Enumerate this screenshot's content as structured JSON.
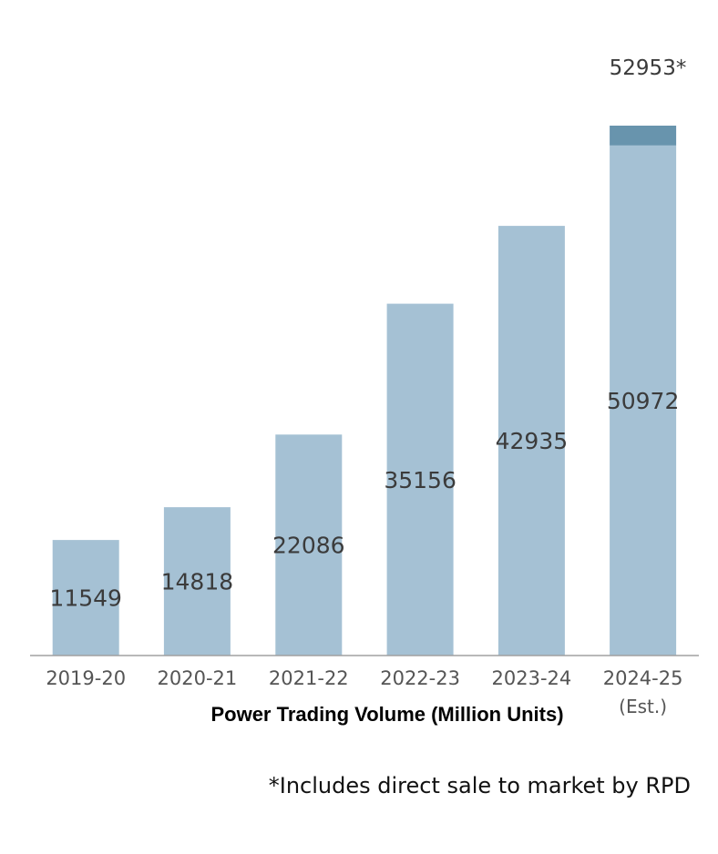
{
  "chart_data": {
    "type": "bar",
    "categories": [
      "2019-20",
      "2020-21",
      "2021-22",
      "2022-23",
      "2023-24",
      "2024-25"
    ],
    "category_sublabels": [
      "",
      "",
      "",
      "",
      "",
      "(Est.)"
    ],
    "values": [
      11549,
      14818,
      22086,
      35156,
      42935,
      50972
    ],
    "stacked_extra": {
      "category": "2024-25",
      "base_value": 50972,
      "total_value": 52953,
      "total_label": "52953*"
    },
    "xlabel": "Power Trading Volume (Million Units)",
    "ylabel": "",
    "ylim": [
      0,
      53000
    ],
    "grid": false,
    "colors": {
      "bar": "#a5c1d4",
      "extra_segment": "#6894ad",
      "axis": "#a0a0a0"
    }
  },
  "footnote": "*Includes direct sale to market by RPD"
}
